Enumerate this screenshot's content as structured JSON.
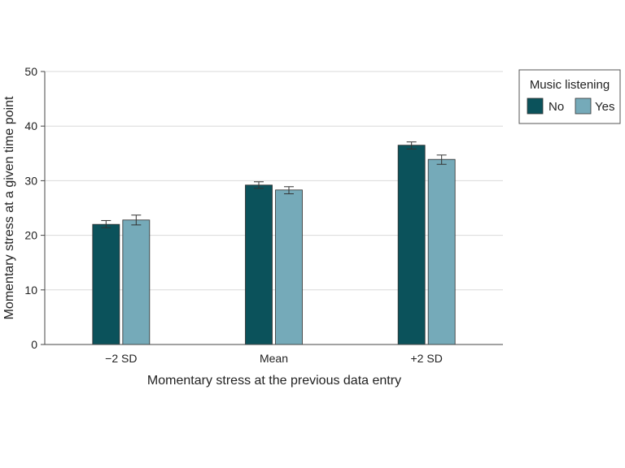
{
  "chart_data": {
    "type": "bar",
    "categories": [
      "−2 SD",
      "Mean",
      "+2 SD"
    ],
    "series": [
      {
        "name": "No",
        "color": "#0b525b",
        "values": [
          22.0,
          29.2,
          36.5
        ],
        "error_low": [
          21.4,
          28.6,
          35.8
        ],
        "error_high": [
          22.7,
          29.8,
          37.1
        ]
      },
      {
        "name": "Yes",
        "color": "#75aab9",
        "values": [
          22.8,
          28.3,
          33.9
        ],
        "error_low": [
          21.9,
          27.6,
          33.0
        ],
        "error_high": [
          23.7,
          28.9,
          34.7
        ]
      }
    ],
    "xlabel": "Momentary stress at the previous data entry",
    "ylabel": "Momentary stress at a given time point",
    "ylim": [
      0,
      50
    ],
    "yticks": [
      0,
      10,
      20,
      30,
      40,
      50
    ],
    "grid": true,
    "legend": {
      "title": "Music listening",
      "placement": "top-right"
    }
  }
}
